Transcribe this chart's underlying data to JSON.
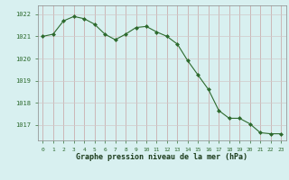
{
  "x": [
    0,
    1,
    2,
    3,
    4,
    5,
    6,
    7,
    8,
    9,
    10,
    11,
    12,
    13,
    14,
    15,
    16,
    17,
    18,
    19,
    20,
    21,
    22,
    23
  ],
  "y": [
    1021.0,
    1021.1,
    1021.7,
    1021.9,
    1021.8,
    1021.55,
    1021.1,
    1020.85,
    1021.1,
    1021.4,
    1021.45,
    1021.2,
    1021.0,
    1020.65,
    1019.9,
    1019.25,
    1018.6,
    1017.65,
    1017.3,
    1017.3,
    1017.05,
    1016.65,
    1016.6,
    1016.6
  ],
  "line_color": "#2d6a2d",
  "marker": "D",
  "marker_size": 2.0,
  "bg_color": "#d8f0f0",
  "grid_color_major": "#c8a0a0",
  "grid_color_minor": "#d0c8c8",
  "xlabel": "Graphe pression niveau de la mer (hPa)",
  "xlabel_color": "#1a3a1a",
  "tick_label_color": "#2d6a2d",
  "ylim_min": 1016.3,
  "ylim_max": 1022.4,
  "yticks": [
    1017,
    1018,
    1019,
    1020,
    1021,
    1022
  ],
  "xticks": [
    0,
    1,
    2,
    3,
    4,
    5,
    6,
    7,
    8,
    9,
    10,
    11,
    12,
    13,
    14,
    15,
    16,
    17,
    18,
    19,
    20,
    21,
    22,
    23
  ]
}
